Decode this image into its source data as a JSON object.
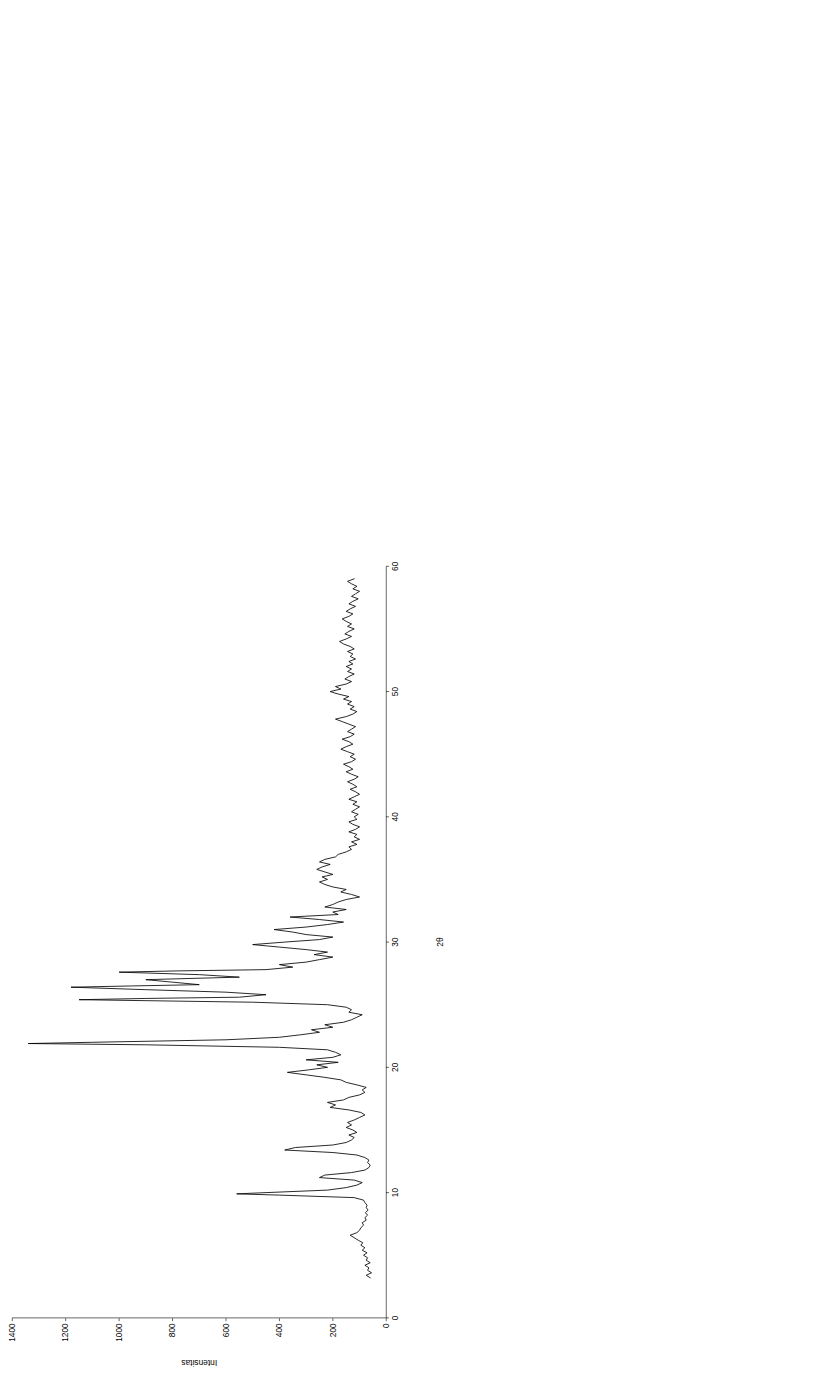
{
  "chart_data": {
    "type": "line",
    "x_label": "2θ",
    "y_label": "Intensitas",
    "color": "#000000",
    "grid": false,
    "xlim": [
      0,
      60
    ],
    "xticks": [
      0,
      10,
      20,
      30,
      40,
      50,
      60
    ],
    "ylim": [
      0,
      1400
    ],
    "yticks": [
      0,
      200,
      400,
      600,
      800,
      1000,
      1200,
      1400
    ],
    "x": [
      3.2,
      3.4,
      3.6,
      3.8,
      4.0,
      4.2,
      4.4,
      4.6,
      4.8,
      5.0,
      5.2,
      5.4,
      5.6,
      5.8,
      6.0,
      6.2,
      6.4,
      6.6,
      6.8,
      7.0,
      7.2,
      7.4,
      7.6,
      7.8,
      8.0,
      8.2,
      8.4,
      8.6,
      8.8,
      9.0,
      9.2,
      9.4,
      9.6,
      9.8,
      9.9,
      10.0,
      10.2,
      10.4,
      10.6,
      10.8,
      11.0,
      11.2,
      11.4,
      11.6,
      11.8,
      12.0,
      12.2,
      12.4,
      12.6,
      12.8,
      13.0,
      13.2,
      13.4,
      13.6,
      13.8,
      14.0,
      14.2,
      14.4,
      14.6,
      14.8,
      15.0,
      15.2,
      15.4,
      15.6,
      15.8,
      16.0,
      16.2,
      16.4,
      16.6,
      16.8,
      17.0,
      17.2,
      17.4,
      17.6,
      17.8,
      18.0,
      18.2,
      18.4,
      18.6,
      18.8,
      19.0,
      19.2,
      19.4,
      19.6,
      19.8,
      20.0,
      20.2,
      20.4,
      20.6,
      20.8,
      21.0,
      21.2,
      21.4,
      21.6,
      21.8,
      21.9,
      22.0,
      22.2,
      22.4,
      22.6,
      22.8,
      23.0,
      23.2,
      23.4,
      23.6,
      23.8,
      24.0,
      24.2,
      24.4,
      24.6,
      24.8,
      25.0,
      25.2,
      25.4,
      25.5,
      25.6,
      25.8,
      26.0,
      26.2,
      26.4,
      26.5,
      26.6,
      26.8,
      27.0,
      27.2,
      27.4,
      27.6,
      27.7,
      27.8,
      28.0,
      28.2,
      28.4,
      28.6,
      28.8,
      29.0,
      29.2,
      29.4,
      29.6,
      29.8,
      30.0,
      30.2,
      30.4,
      30.6,
      30.8,
      31.0,
      31.2,
      31.4,
      31.6,
      31.8,
      32.0,
      32.2,
      32.4,
      32.6,
      32.8,
      33.0,
      33.2,
      33.4,
      33.6,
      33.8,
      34.0,
      34.2,
      34.4,
      34.6,
      34.8,
      35.0,
      35.2,
      35.4,
      35.6,
      35.8,
      36.0,
      36.2,
      36.4,
      36.6,
      36.8,
      37.0,
      37.2,
      37.4,
      37.6,
      37.8,
      38.0,
      38.2,
      38.4,
      38.6,
      38.8,
      39.0,
      39.2,
      39.4,
      39.6,
      39.8,
      40.0,
      40.2,
      40.4,
      40.6,
      40.8,
      41.0,
      41.2,
      41.4,
      41.6,
      41.8,
      42.0,
      42.2,
      42.4,
      42.6,
      42.8,
      43.0,
      43.2,
      43.4,
      43.6,
      43.8,
      44.0,
      44.2,
      44.4,
      44.6,
      44.8,
      45.0,
      45.2,
      45.4,
      45.6,
      45.8,
      46.0,
      46.2,
      46.4,
      46.6,
      46.8,
      47.0,
      47.2,
      47.4,
      47.6,
      47.8,
      48.0,
      48.2,
      48.4,
      48.6,
      48.8,
      49.0,
      49.2,
      49.4,
      49.6,
      49.8,
      50.0,
      50.2,
      50.4,
      50.6,
      50.8,
      51.0,
      51.2,
      51.4,
      51.6,
      51.8,
      52.0,
      52.2,
      52.4,
      52.6,
      52.8,
      53.0,
      53.2,
      53.4,
      53.6,
      53.8,
      54.0,
      54.2,
      54.4,
      54.6,
      54.8,
      55.0,
      55.2,
      55.4,
      55.6,
      55.8,
      56.0,
      56.2,
      56.4,
      56.6,
      56.8,
      57.0,
      57.2,
      57.4,
      57.6,
      57.8,
      58.0,
      58.2,
      58.4,
      58.6,
      58.8,
      59.0
    ],
    "values": [
      60,
      75,
      55,
      70,
      65,
      80,
      60,
      75,
      70,
      85,
      72,
      90,
      80,
      95,
      88,
      105,
      120,
      135,
      110,
      100,
      95,
      85,
      90,
      75,
      80,
      70,
      78,
      68,
      75,
      72,
      80,
      85,
      120,
      400,
      560,
      450,
      220,
      150,
      110,
      90,
      120,
      250,
      230,
      130,
      80,
      65,
      60,
      70,
      65,
      80,
      110,
      200,
      380,
      340,
      200,
      150,
      130,
      120,
      140,
      110,
      125,
      150,
      130,
      145,
      120,
      100,
      80,
      95,
      140,
      210,
      190,
      220,
      160,
      140,
      100,
      80,
      90,
      75,
      110,
      150,
      170,
      230,
      300,
      370,
      290,
      220,
      260,
      180,
      300,
      200,
      170,
      190,
      220,
      400,
      900,
      1340,
      1100,
      600,
      400,
      320,
      250,
      280,
      200,
      230,
      160,
      130,
      110,
      90,
      140,
      130,
      150,
      220,
      500,
      1150,
      900,
      550,
      450,
      600,
      900,
      1180,
      950,
      700,
      800,
      900,
      550,
      700,
      1000,
      780,
      450,
      350,
      400,
      300,
      250,
      200,
      270,
      220,
      300,
      400,
      500,
      380,
      250,
      200,
      300,
      350,
      420,
      300,
      220,
      160,
      250,
      360,
      180,
      200,
      150,
      230,
      200,
      180,
      150,
      100,
      130,
      170,
      150,
      200,
      230,
      250,
      220,
      240,
      200,
      230,
      260,
      240,
      210,
      250,
      230,
      190,
      180,
      150,
      130,
      140,
      110,
      130,
      100,
      120,
      110,
      140,
      115,
      100,
      125,
      140,
      110,
      120,
      105,
      130,
      115,
      100,
      125,
      110,
      140,
      120,
      100,
      115,
      135,
      110,
      125,
      145,
      120,
      105,
      130,
      150,
      125,
      140,
      160,
      130,
      115,
      135,
      120,
      145,
      170,
      150,
      125,
      140,
      165,
      135,
      120,
      145,
      130,
      115,
      140,
      165,
      190,
      150,
      125,
      110,
      135,
      120,
      145,
      130,
      160,
      140,
      180,
      210,
      170,
      190,
      150,
      130,
      155,
      140,
      120,
      145,
      130,
      150,
      125,
      140,
      115,
      135,
      125,
      145,
      120,
      135,
      160,
      175,
      150,
      130,
      155,
      140,
      120,
      145,
      130,
      150,
      165,
      140,
      125,
      150,
      135,
      115,
      140,
      125,
      105,
      130,
      115,
      100,
      125,
      110,
      130,
      145,
      120
    ]
  }
}
